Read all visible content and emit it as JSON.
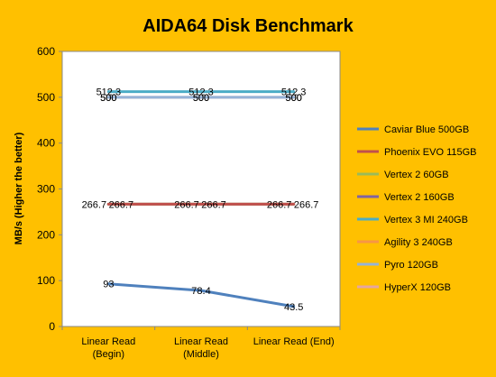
{
  "chart_data": {
    "type": "line",
    "title": "AIDA64 Disk Benchmark",
    "ylabel": "MB/s (Higher the better)",
    "xlabel": "",
    "ylim": [
      0,
      600
    ],
    "yticks": [
      0,
      100,
      200,
      300,
      400,
      500,
      600
    ],
    "categories": [
      "Linear Read (Begin)",
      "Linear Read (Middle)",
      "Linear Read (End)"
    ],
    "category_lines": [
      [
        "Linear Read",
        "(Begin)"
      ],
      [
        "Linear Read",
        "(Middle)"
      ],
      [
        "Linear Read (End)"
      ]
    ],
    "grid": false,
    "legend": "right",
    "series": [
      {
        "name": "Caviar Blue 500GB",
        "values": [
          93,
          78.4,
          43.5
        ],
        "labels": [
          "93",
          "78.4",
          "43.5"
        ],
        "color": "#4f81bd"
      },
      {
        "name": "Phoenix EVO 115GB",
        "values": [
          266.7,
          266.7,
          266.7
        ],
        "labels": [
          "",
          "",
          ""
        ],
        "color": "#c0504d"
      },
      {
        "name": "Vertex 2 60GB",
        "values": [
          266.7,
          266.7,
          266.7
        ],
        "labels": [
          "",
          "",
          ""
        ],
        "color": "#9bbb59"
      },
      {
        "name": "Vertex 2 160GB",
        "values": [
          266.7,
          266.7,
          266.7
        ],
        "labels": [
          "266.7",
          "266.7",
          "266.7"
        ],
        "color": "#8064a2"
      },
      {
        "name": "Vertex 3 MI 240GB",
        "values": [
          512.3,
          512.3,
          512.3
        ],
        "labels": [
          "512.3",
          "512.3",
          "512.3"
        ],
        "color": "#4bacc6"
      },
      {
        "name": "Agility 3 240GB",
        "values": [
          266.7,
          266.7,
          266.7
        ],
        "labels": [
          "266.7",
          "266.7",
          "266.7"
        ],
        "color": "#f79646"
      },
      {
        "name": "Pyro 120GB",
        "values": [
          500,
          500,
          500
        ],
        "labels": [
          "500",
          "500",
          "500"
        ],
        "color": "#95b3d7"
      },
      {
        "name": "HyperX 120GB",
        "values": [
          500,
          500,
          500
        ],
        "labels": [
          "500",
          "500",
          "500"
        ],
        "color": "#e6a6a1"
      }
    ]
  }
}
